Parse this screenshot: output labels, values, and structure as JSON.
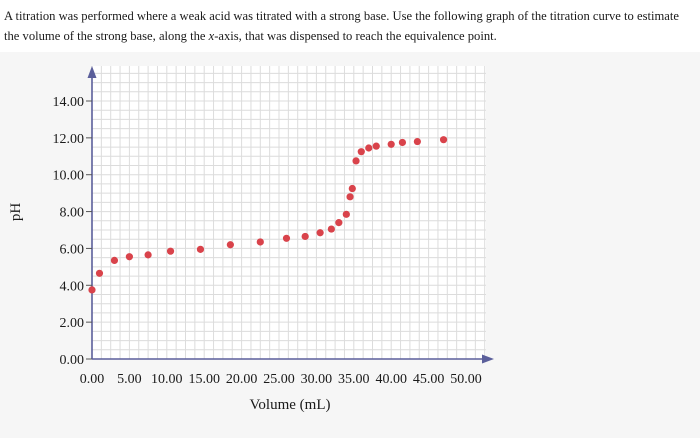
{
  "question": {
    "part1": "A titration was performed where a weak acid was titrated with a strong base. Use the following graph of the titration curve to estimate the volume of the strong base, along the ",
    "italic": "x",
    "part2": "-axis, that was dispensed to reach the equivalence point."
  },
  "chart_data": {
    "type": "scatter",
    "title": "",
    "xlabel": "Volume (mL)",
    "ylabel": "pH",
    "xlim": [
      0,
      50
    ],
    "ylim": [
      0,
      14
    ],
    "xticks": [
      "0.00",
      "5.00",
      "10.00",
      "15.00",
      "20.00",
      "25.00",
      "30.00",
      "35.00",
      "40.00",
      "45.00",
      "50.00"
    ],
    "yticks": [
      "0.00",
      "2.00",
      "4.00",
      "6.00",
      "8.00",
      "10.00",
      "12.00",
      "14.00"
    ],
    "grid": true,
    "point_color": "#d9434b",
    "x": [
      0.0,
      1.0,
      3.0,
      5.0,
      7.5,
      10.5,
      14.5,
      18.5,
      22.5,
      26.0,
      28.5,
      30.5,
      32.0,
      33.0,
      34.0,
      34.5,
      34.8,
      35.3,
      36.0,
      37.0,
      38.0,
      40.0,
      41.5,
      43.5,
      47.0
    ],
    "y": [
      3.75,
      4.65,
      5.35,
      5.55,
      5.65,
      5.85,
      5.95,
      6.2,
      6.35,
      6.55,
      6.65,
      6.85,
      7.05,
      7.4,
      7.85,
      8.8,
      9.25,
      10.75,
      11.25,
      11.45,
      11.55,
      11.65,
      11.75,
      11.8,
      11.9
    ]
  }
}
